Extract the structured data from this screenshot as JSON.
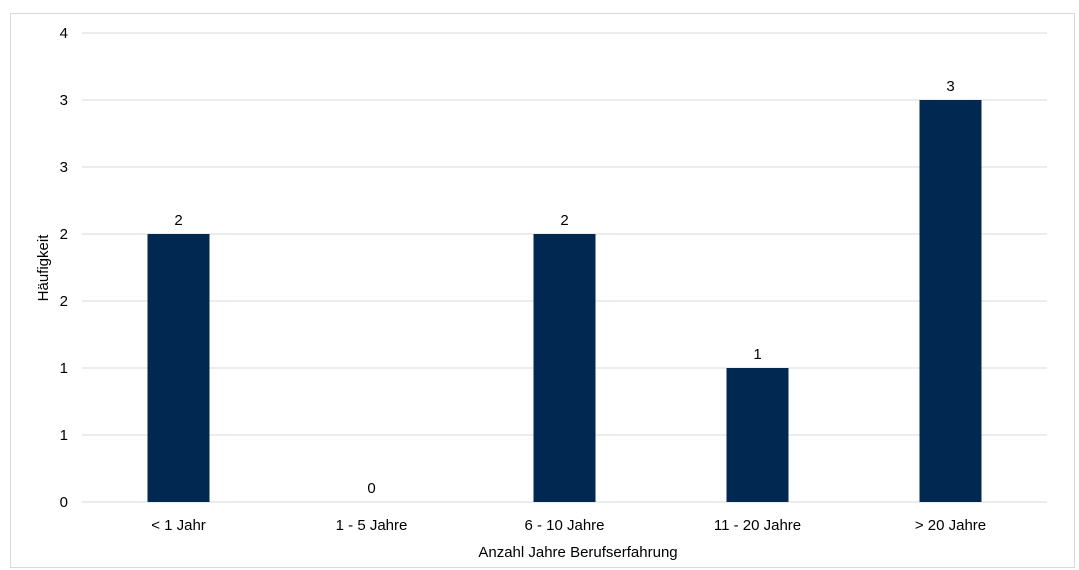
{
  "chart_data": {
    "type": "bar",
    "title": "",
    "xlabel": "Anzahl Jahre Berufserfahrung",
    "ylabel": "Häufigkeit",
    "categories": [
      "< 1 Jahr",
      "1 - 5 Jahre",
      "6 - 10 Jahre",
      "11 - 20 Jahre",
      "> 20 Jahre"
    ],
    "values": [
      2,
      0,
      2,
      1,
      3
    ],
    "value_labels": [
      "2",
      "0",
      "2",
      "1",
      "3"
    ],
    "ylim": [
      0,
      3.5
    ],
    "y_tick_labels": [
      "0",
      "1",
      "1",
      "2",
      "2",
      "3",
      "3",
      "4"
    ],
    "grid": true,
    "legend": "none",
    "bar_color": "#002850",
    "gridline_color": "#d9d9d9"
  }
}
